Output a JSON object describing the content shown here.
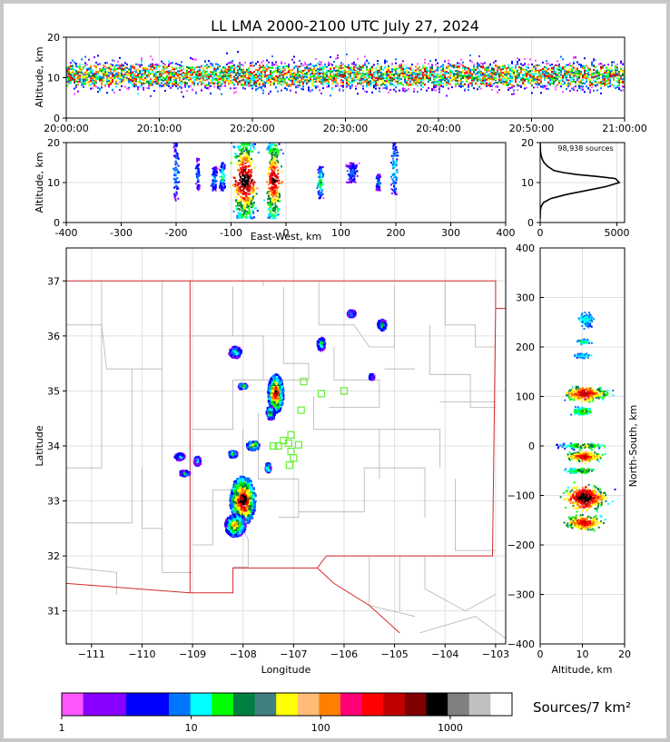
{
  "title": "LL LMA 2000-2100 UTC July 27, 2024",
  "colors": {
    "background": "#ffffff",
    "frame": "#c8c8c8",
    "state_border": "#d42a2a",
    "county": "#b4b4b4",
    "station": "#66ee33"
  },
  "chart_data": [
    {
      "name": "altitude-time",
      "type": "heatmap",
      "ylabel": "Altitude, km",
      "ylim": [
        0,
        20
      ],
      "yticks": [
        "0",
        "10",
        "20"
      ],
      "xticks": [
        "20:00:00",
        "20:10:00",
        "20:20:00",
        "20:30:00",
        "20:40:00",
        "20:50:00",
        "21:00:00"
      ],
      "band_km": [
        6,
        15
      ]
    },
    {
      "name": "altitude-eastwest",
      "type": "heatmap",
      "xlabel": "East-West, km",
      "ylabel": "Altitude, km",
      "xlim": [
        -400,
        400
      ],
      "ylim": [
        0,
        20
      ],
      "xticks": [
        "-400",
        "-300",
        "-200",
        "-100",
        "0",
        "100",
        "200",
        "300",
        "400"
      ],
      "yticks": [
        "0",
        "10",
        "20"
      ],
      "clusters": [
        {
          "x": -200,
          "w": 10,
          "y0": 5,
          "y1": 20,
          "level": 0.3
        },
        {
          "x": -160,
          "w": 8,
          "y0": 8,
          "y1": 16,
          "level": 0.25
        },
        {
          "x": -130,
          "w": 10,
          "y0": 8,
          "y1": 14,
          "level": 0.3
        },
        {
          "x": -115,
          "w": 10,
          "y0": 8,
          "y1": 15,
          "level": 0.4
        },
        {
          "x": -75,
          "w": 40,
          "y0": 1,
          "y1": 20,
          "level": 1.0
        },
        {
          "x": -22,
          "w": 28,
          "y0": 1,
          "y1": 20,
          "level": 0.9
        },
        {
          "x": 63,
          "w": 10,
          "y0": 6,
          "y1": 14,
          "level": 0.45
        },
        {
          "x": 120,
          "w": 20,
          "y0": 10,
          "y1": 15,
          "level": 0.25
        },
        {
          "x": 168,
          "w": 8,
          "y0": 8,
          "y1": 12,
          "level": 0.3
        },
        {
          "x": 198,
          "w": 12,
          "y0": 7,
          "y1": 20,
          "level": 0.35
        }
      ]
    },
    {
      "name": "altitude-histogram",
      "type": "line",
      "annotation": "98,938 sources",
      "xlim": [
        0,
        5500
      ],
      "ylim": [
        0,
        20
      ],
      "xticks": [
        "0",
        "5000"
      ],
      "yticks": [
        "0",
        "10",
        "20"
      ],
      "x": [
        0,
        10,
        60,
        220,
        700,
        1700,
        3000,
        4300,
        5150,
        4900,
        3800,
        2400,
        1500,
        900,
        500,
        250,
        120,
        50,
        15,
        0
      ],
      "y": [
        1,
        3,
        4,
        5,
        6,
        7,
        8,
        9,
        10,
        11,
        11.5,
        12,
        12.5,
        13,
        14,
        15,
        16,
        17,
        18,
        20
      ]
    },
    {
      "name": "plan-view",
      "type": "heatmap",
      "xlabel": "Longitude",
      "ylabel": "Latitude",
      "xlim": [
        -111.5,
        -102.8
      ],
      "ylim": [
        30.4,
        37.6
      ],
      "xticks": [
        "−111",
        "−110",
        "−109",
        "−108",
        "−107",
        "−106",
        "−105",
        "−104",
        "−103"
      ],
      "yticks": [
        "31",
        "32",
        "33",
        "34",
        "35",
        "36",
        "37"
      ],
      "storms": [
        {
          "lon": -108.0,
          "lat": 33.0,
          "rx": 0.25,
          "ry": 0.45,
          "level": 1.0
        },
        {
          "lon": -108.15,
          "lat": 32.55,
          "rx": 0.2,
          "ry": 0.2,
          "level": 0.7
        },
        {
          "lon": -107.35,
          "lat": 34.95,
          "rx": 0.15,
          "ry": 0.35,
          "level": 0.9
        },
        {
          "lon": -107.45,
          "lat": 34.6,
          "rx": 0.08,
          "ry": 0.12,
          "level": 0.5
        },
        {
          "lon": -107.8,
          "lat": 34.0,
          "rx": 0.12,
          "ry": 0.08,
          "level": 0.7
        },
        {
          "lon": -108.2,
          "lat": 33.85,
          "rx": 0.08,
          "ry": 0.06,
          "level": 0.5
        },
        {
          "lon": -108.0,
          "lat": 35.08,
          "rx": 0.08,
          "ry": 0.05,
          "level": 0.6
        },
        {
          "lon": -107.5,
          "lat": 33.6,
          "rx": 0.05,
          "ry": 0.08,
          "level": 0.5
        },
        {
          "lon": -108.15,
          "lat": 35.7,
          "rx": 0.12,
          "ry": 0.1,
          "level": 0.4
        },
        {
          "lon": -106.45,
          "lat": 35.85,
          "rx": 0.07,
          "ry": 0.12,
          "level": 0.4
        },
        {
          "lon": -105.25,
          "lat": 36.2,
          "rx": 0.08,
          "ry": 0.1,
          "level": 0.45
        },
        {
          "lon": -105.85,
          "lat": 36.4,
          "rx": 0.08,
          "ry": 0.06,
          "level": 0.35
        },
        {
          "lon": -109.25,
          "lat": 33.8,
          "rx": 0.1,
          "ry": 0.06,
          "level": 0.35
        },
        {
          "lon": -109.15,
          "lat": 33.5,
          "rx": 0.1,
          "ry": 0.05,
          "level": 0.3
        },
        {
          "lon": -108.9,
          "lat": 33.72,
          "rx": 0.06,
          "ry": 0.08,
          "level": 0.3
        },
        {
          "lon": -105.45,
          "lat": 35.25,
          "rx": 0.05,
          "ry": 0.05,
          "level": 0.3
        }
      ],
      "stations": [
        {
          "lon": -106.8,
          "lat": 35.17
        },
        {
          "lon": -106.45,
          "lat": 34.95
        },
        {
          "lon": -106.0,
          "lat": 35.0
        },
        {
          "lon": -106.85,
          "lat": 34.65
        },
        {
          "lon": -107.05,
          "lat": 34.2
        },
        {
          "lon": -107.2,
          "lat": 34.1
        },
        {
          "lon": -107.3,
          "lat": 34.0
        },
        {
          "lon": -107.4,
          "lat": 34.0
        },
        {
          "lon": -107.1,
          "lat": 34.05
        },
        {
          "lon": -106.9,
          "lat": 34.02
        },
        {
          "lon": -107.05,
          "lat": 33.9
        },
        {
          "lon": -107.0,
          "lat": 33.78
        },
        {
          "lon": -107.08,
          "lat": 33.65
        }
      ]
    },
    {
      "name": "northsouth-altitude",
      "type": "heatmap",
      "xlabel": "Altitude, km",
      "ylabel": "North-South, km",
      "xlim": [
        0,
        20
      ],
      "ylim": [
        -400,
        400
      ],
      "xticks": [
        "0",
        "10",
        "20"
      ],
      "yticks": [
        "−400",
        "−300",
        "−200",
        "−100",
        "0",
        "100",
        "200",
        "300",
        "400"
      ],
      "clusters": [
        {
          "y": 255,
          "h": 25,
          "x0": 8,
          "x1": 14,
          "level": 0.35
        },
        {
          "y": 210,
          "h": 8,
          "x0": 8,
          "x1": 13,
          "level": 0.4
        },
        {
          "y": 182,
          "h": 8,
          "x0": 7,
          "x1": 13,
          "level": 0.35
        },
        {
          "y": 105,
          "h": 25,
          "x0": 2,
          "x1": 20,
          "level": 0.9
        },
        {
          "y": 70,
          "h": 15,
          "x0": 6,
          "x1": 14,
          "level": 0.5
        },
        {
          "y": 0,
          "h": 10,
          "x0": 0,
          "x1": 20,
          "level": 0.6
        },
        {
          "y": -22,
          "h": 18,
          "x0": 3,
          "x1": 18,
          "level": 0.85
        },
        {
          "y": -50,
          "h": 10,
          "x0": 3,
          "x1": 16,
          "level": 0.55
        },
        {
          "y": -105,
          "h": 40,
          "x0": 2,
          "x1": 20,
          "level": 1.0
        },
        {
          "y": -155,
          "h": 25,
          "x0": 3,
          "x1": 18,
          "level": 0.85
        }
      ]
    }
  ],
  "colorbar": {
    "label": "Sources/7 km²",
    "ticks": [
      "1",
      "10",
      "100",
      "1000"
    ],
    "colors": [
      "#ff55ff",
      "#8800ff",
      "#8800ff",
      "#0000ff",
      "#0000ff",
      "#0077ff",
      "#00ffff",
      "#00ff00",
      "#008040",
      "#408080",
      "#ffff00",
      "#ffbb77",
      "#ff8000",
      "#ff0077",
      "#ff0000",
      "#c00000",
      "#800000",
      "#000000",
      "#808080",
      "#c0c0c0",
      "#ffffff"
    ]
  }
}
